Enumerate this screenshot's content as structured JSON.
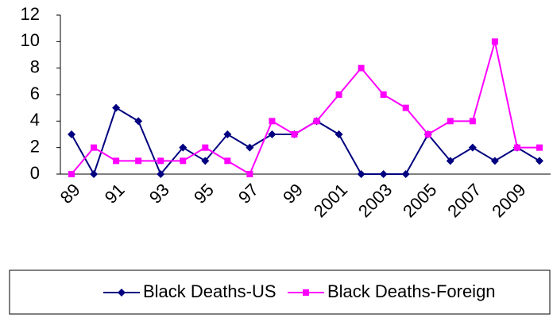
{
  "chart_data": {
    "type": "line",
    "categories": [
      "89",
      null,
      "91",
      null,
      "93",
      null,
      "95",
      null,
      "97",
      null,
      "99",
      null,
      "2001",
      null,
      "2003",
      null,
      "2005",
      null,
      "2007",
      null,
      "2009",
      null
    ],
    "series": [
      {
        "name": "Black Deaths-US",
        "color": "#000080",
        "marker": "diamond",
        "values": [
          3,
          0,
          5,
          4,
          0,
          2,
          1,
          3,
          2,
          3,
          3,
          4,
          3,
          0,
          0,
          0,
          3,
          1,
          2,
          1,
          2,
          1
        ]
      },
      {
        "name": "Black Deaths-Foreign",
        "color": "#ff00ff",
        "marker": "square",
        "values": [
          0,
          2,
          1,
          1,
          1,
          1,
          2,
          1,
          0,
          4,
          3,
          4,
          6,
          8,
          6,
          5,
          3,
          4,
          4,
          10,
          2,
          2
        ]
      }
    ],
    "ylim": [
      0,
      12
    ],
    "yticks": [
      0,
      2,
      4,
      6,
      8,
      10,
      12
    ],
    "legend": "bottom"
  }
}
